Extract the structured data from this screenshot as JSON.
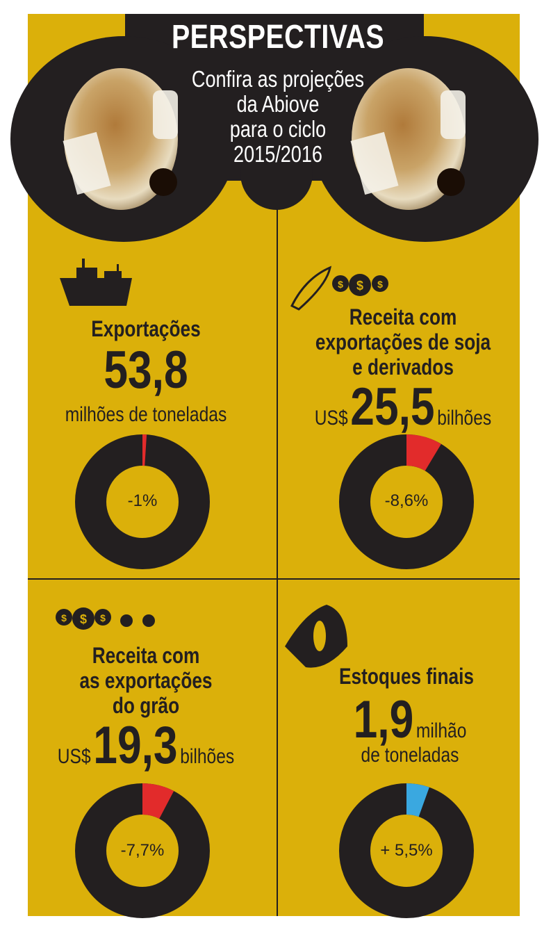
{
  "header": {
    "title": "PERSPECTIVAS",
    "subtitle_lines": [
      "Confira as projeções",
      "da Abiove",
      "para o ciclo",
      "2015/2016"
    ]
  },
  "colors": {
    "background": "#dbb00a",
    "ring": "#231f20",
    "negative": "#e22b2b",
    "positive": "#3aa8e0"
  },
  "cards": [
    {
      "icon": "ship-icon",
      "title_lines": [
        "Exportações"
      ],
      "prefix": "",
      "value": "53,8",
      "unit": "milhões de toneladas",
      "change": "-1%",
      "change_value": -1
    },
    {
      "icon": "money-bags-icon",
      "title_lines": [
        "Receita com",
        "exportações de soja",
        "e derivados"
      ],
      "prefix": "US$",
      "value": "25,5",
      "unit": "bilhões",
      "change": "-8,6%",
      "change_value": -8.6
    },
    {
      "icon": "money-bags-icon",
      "title_lines": [
        "Receita com",
        "as exportações",
        "do grão"
      ],
      "prefix": "US$",
      "value": "19,3",
      "unit": "bilhões",
      "change": "-7,7%",
      "change_value": -7.7
    },
    {
      "icon": "sack-icon",
      "title_lines": [
        "Estoques finais"
      ],
      "prefix": "",
      "value": "1,9",
      "unit": "milhão",
      "unit2": "de toneladas",
      "change": "+ 5,5%",
      "change_value": 5.5
    }
  ]
}
